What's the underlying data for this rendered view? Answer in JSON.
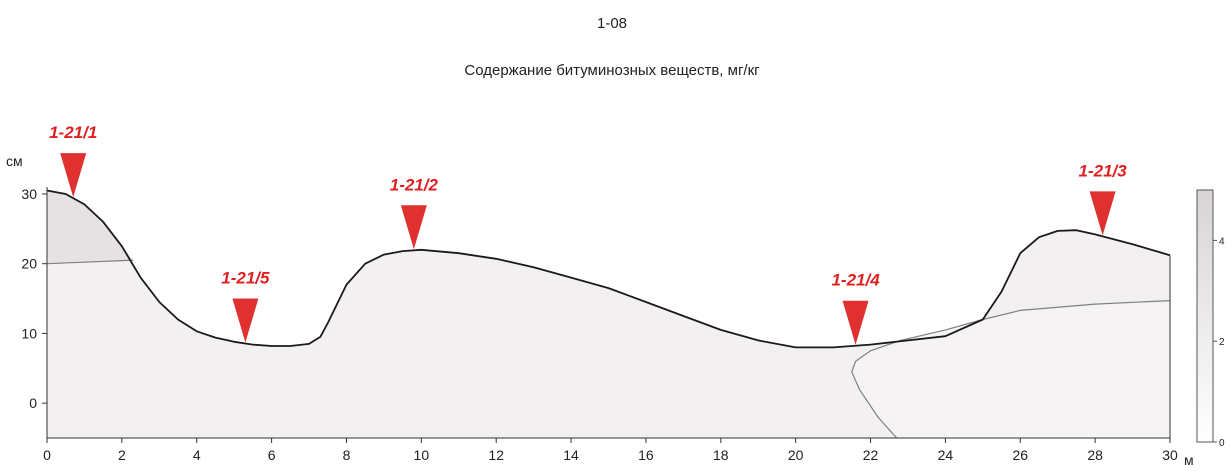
{
  "chart_data": {
    "type": "area",
    "id_label": "1-08",
    "title": "Содержание битуминозных веществ, мг/кг",
    "ylabel": "см",
    "xlabel": "м",
    "xlim": [
      0,
      30
    ],
    "ylim": [
      -5,
      31
    ],
    "x_ticks": [
      0,
      2,
      4,
      6,
      8,
      10,
      12,
      14,
      16,
      18,
      20,
      22,
      24,
      26,
      28,
      30
    ],
    "x_tick_labels": [
      "0",
      "2",
      "4",
      "6",
      "8",
      "10",
      "12",
      "14",
      "16",
      "18",
      "20",
      "22",
      "24",
      "26",
      "28",
      "30"
    ],
    "y_ticks": [
      0,
      10,
      20,
      30
    ],
    "y_tick_labels": [
      "0",
      "10",
      "20",
      "30"
    ],
    "grid": false,
    "surface": {
      "x": [
        0,
        0.5,
        1,
        1.5,
        2,
        2.5,
        3,
        3.5,
        4,
        4.5,
        5,
        5.5,
        6,
        6.5,
        7,
        7.3,
        7.5,
        8,
        8.5,
        9,
        9.5,
        10,
        11,
        12,
        13,
        14,
        15,
        16,
        17,
        18,
        19,
        20,
        21,
        22,
        23,
        24,
        25,
        25.5,
        26,
        26.5,
        27,
        27.5,
        28,
        29,
        30
      ],
      "y": [
        30.5,
        30,
        28.5,
        26,
        22.5,
        18,
        14.5,
        12,
        10.3,
        9.4,
        8.8,
        8.4,
        8.2,
        8.2,
        8.5,
        9.5,
        11.5,
        17,
        20,
        21.3,
        21.8,
        22,
        21.5,
        20.7,
        19.5,
        18,
        16.5,
        14.5,
        12.5,
        10.5,
        9,
        8,
        8,
        8.4,
        9,
        9.6,
        12,
        16,
        21.5,
        23.8,
        24.7,
        24.8,
        24.2,
        22.8,
        21.2
      ]
    },
    "layers": [
      {
        "x": [
          0,
          2.3
        ],
        "y": [
          20,
          20.5
        ]
      },
      {
        "x": [
          22.7,
          22.2,
          21.7,
          21.5,
          21.6,
          22,
          22.8,
          24,
          25,
          26,
          28,
          30
        ],
        "y": [
          -5,
          -2,
          2,
          4.5,
          6,
          7.5,
          9,
          10.5,
          12,
          13.3,
          14.2,
          14.7
        ]
      }
    ],
    "markers": [
      {
        "label": "1-21/1",
        "x": 0.7
      },
      {
        "label": "1-21/5",
        "x": 5.3
      },
      {
        "label": "1-21/2",
        "x": 9.8
      },
      {
        "label": "1-21/4",
        "x": 21.6
      },
      {
        "label": "1-21/3",
        "x": 28.2
      }
    ],
    "legend": {
      "placement": "right",
      "range": [
        0,
        5
      ],
      "ticks": [
        0,
        2,
        4
      ],
      "tick_labels": [
        "0",
        "2",
        "4"
      ]
    },
    "colors": {
      "marker": "#e03030",
      "marker_label": "#e02020",
      "surface_line": "#1a1a1a",
      "fill_light": "#f3f0f1",
      "fill_mid": "#e6e2e4",
      "layer_line": "#808080",
      "axis": "#333333"
    }
  }
}
